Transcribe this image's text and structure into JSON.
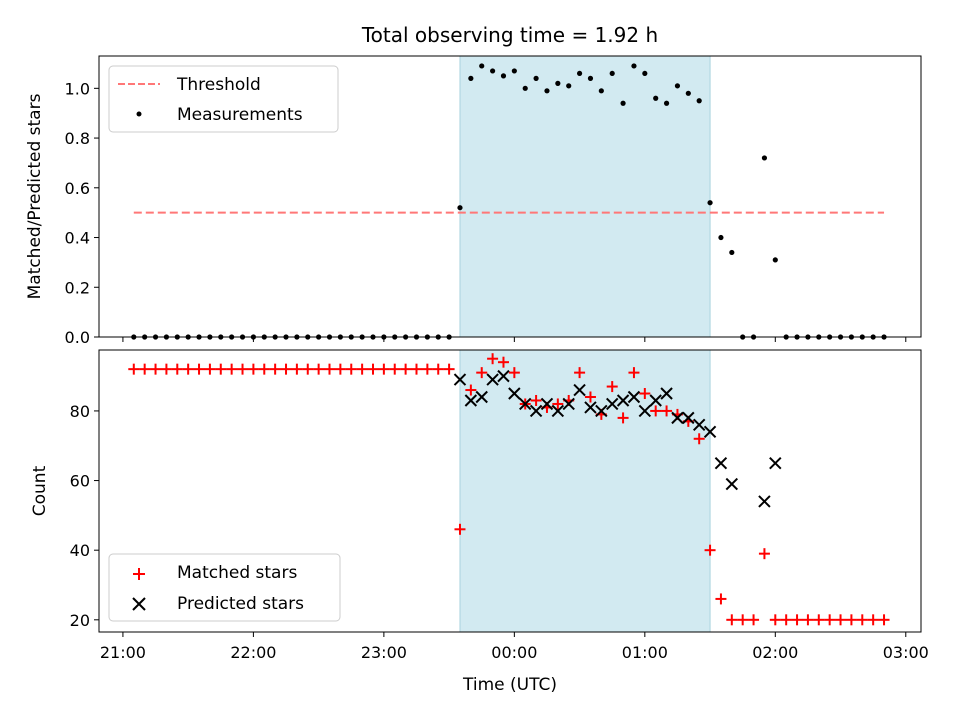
{
  "chart_data": [
    {
      "type": "scatter",
      "title": "Total observing time = 1.92 h",
      "ylabel": "Matched/Predicted stars",
      "xlabel": "",
      "xlim": [
        "20:49",
        "03:07"
      ],
      "ylim": [
        0,
        1.13
      ],
      "y_ticks": [
        "0.0",
        "0.2",
        "0.4",
        "0.6",
        "0.8",
        "1.0"
      ],
      "legend_position": "upper-left",
      "shaded_interval": {
        "start": "23:35",
        "end": "01:30",
        "color": "#d2eaf1"
      },
      "series": [
        {
          "name": "Threshold",
          "kind": "dashed-line",
          "color": "#ff7777",
          "x": [
            "21:05",
            "02:50"
          ],
          "values": [
            0.5,
            0.5
          ]
        },
        {
          "name": "Measurements",
          "kind": "points",
          "color": "#000000",
          "x": [
            "21:05",
            "21:10",
            "21:15",
            "21:20",
            "21:25",
            "21:30",
            "21:35",
            "21:40",
            "21:45",
            "21:50",
            "21:55",
            "22:00",
            "22:05",
            "22:10",
            "22:15",
            "22:20",
            "22:25",
            "22:30",
            "22:35",
            "22:40",
            "22:45",
            "22:50",
            "22:55",
            "23:00",
            "23:05",
            "23:10",
            "23:15",
            "23:20",
            "23:25",
            "23:30",
            "23:35",
            "23:40",
            "23:45",
            "23:50",
            "23:55",
            "00:00",
            "00:05",
            "00:10",
            "00:15",
            "00:20",
            "00:25",
            "00:30",
            "00:35",
            "00:40",
            "00:45",
            "00:50",
            "00:55",
            "01:00",
            "01:05",
            "01:10",
            "01:15",
            "01:20",
            "01:25",
            "01:30",
            "01:35",
            "01:40",
            "01:45",
            "01:50",
            "01:55",
            "02:00",
            "02:05",
            "02:10",
            "02:15",
            "02:20",
            "02:25",
            "02:30",
            "02:35",
            "02:40",
            "02:45",
            "02:50"
          ],
          "values": [
            0,
            0,
            0,
            0,
            0,
            0,
            0,
            0,
            0,
            0,
            0,
            0,
            0,
            0,
            0,
            0,
            0,
            0,
            0,
            0,
            0,
            0,
            0,
            0,
            0,
            0,
            0,
            0,
            0,
            0,
            0.52,
            1.04,
            1.09,
            1.07,
            1.05,
            1.07,
            1.0,
            1.04,
            0.99,
            1.02,
            1.01,
            1.06,
            1.04,
            0.99,
            1.06,
            0.94,
            1.09,
            1.06,
            0.96,
            0.94,
            1.01,
            0.98,
            0.95,
            0.54,
            0.4,
            0.34,
            0,
            0,
            0.72,
            0.31,
            0,
            0,
            0,
            0,
            0,
            0,
            0,
            0,
            0,
            0
          ]
        }
      ]
    },
    {
      "type": "scatter",
      "title": "",
      "xlabel": "Time (UTC)",
      "ylabel": "Count",
      "xlim": [
        "20:49",
        "03:07"
      ],
      "ylim": [
        16.5,
        97.5
      ],
      "x_ticks": [
        "21:00",
        "22:00",
        "23:00",
        "00:00",
        "01:00",
        "02:00",
        "03:00"
      ],
      "y_ticks": [
        "20",
        "40",
        "60",
        "80"
      ],
      "legend_position": "lower-left",
      "shaded_interval": {
        "start": "23:35",
        "end": "01:30",
        "color": "#d2eaf1"
      },
      "series": [
        {
          "name": "Matched stars",
          "marker": "plus",
          "color": "#ff0000",
          "x": [
            "21:05",
            "21:10",
            "21:15",
            "21:20",
            "21:25",
            "21:30",
            "21:35",
            "21:40",
            "21:45",
            "21:50",
            "21:55",
            "22:00",
            "22:05",
            "22:10",
            "22:15",
            "22:20",
            "22:25",
            "22:30",
            "22:35",
            "22:40",
            "22:45",
            "22:50",
            "22:55",
            "23:00",
            "23:05",
            "23:10",
            "23:15",
            "23:20",
            "23:25",
            "23:30",
            "23:35",
            "23:40",
            "23:45",
            "23:50",
            "23:55",
            "00:00",
            "00:05",
            "00:10",
            "00:15",
            "00:20",
            "00:25",
            "00:30",
            "00:35",
            "00:40",
            "00:45",
            "00:50",
            "00:55",
            "01:00",
            "01:05",
            "01:10",
            "01:15",
            "01:20",
            "01:25",
            "01:30",
            "01:35",
            "01:40",
            "01:45",
            "01:50",
            "01:55",
            "02:00",
            "02:05",
            "02:10",
            "02:15",
            "02:20",
            "02:25",
            "02:30",
            "02:35",
            "02:40",
            "02:45",
            "02:50"
          ],
          "values": [
            92,
            92,
            92,
            92,
            92,
            92,
            92,
            92,
            92,
            92,
            92,
            92,
            92,
            92,
            92,
            92,
            92,
            92,
            92,
            92,
            92,
            92,
            92,
            92,
            92,
            92,
            92,
            92,
            92,
            92,
            46,
            86,
            91,
            95,
            94,
            91,
            82,
            83,
            81,
            82,
            83,
            91,
            84,
            79,
            87,
            78,
            91,
            85,
            80,
            80,
            79,
            77,
            72,
            40,
            26,
            20,
            20,
            20,
            39,
            20,
            20,
            20,
            20,
            20,
            20,
            20,
            20,
            20,
            20,
            20
          ]
        },
        {
          "name": "Predicted stars",
          "marker": "x",
          "color": "#000000",
          "x": [
            "23:35",
            "23:40",
            "23:45",
            "23:50",
            "23:55",
            "00:00",
            "00:05",
            "00:10",
            "00:15",
            "00:20",
            "00:25",
            "00:30",
            "00:35",
            "00:40",
            "00:45",
            "00:50",
            "00:55",
            "01:00",
            "01:05",
            "01:10",
            "01:15",
            "01:20",
            "01:25",
            "01:30",
            "01:35",
            "01:40",
            "01:55",
            "02:00"
          ],
          "values": [
            89,
            83,
            84,
            89,
            90,
            85,
            82,
            80,
            82,
            80,
            82,
            86,
            81,
            80,
            82,
            83,
            84,
            80,
            83,
            85,
            78,
            78,
            76,
            74,
            65,
            59,
            54,
            65
          ]
        }
      ]
    }
  ]
}
